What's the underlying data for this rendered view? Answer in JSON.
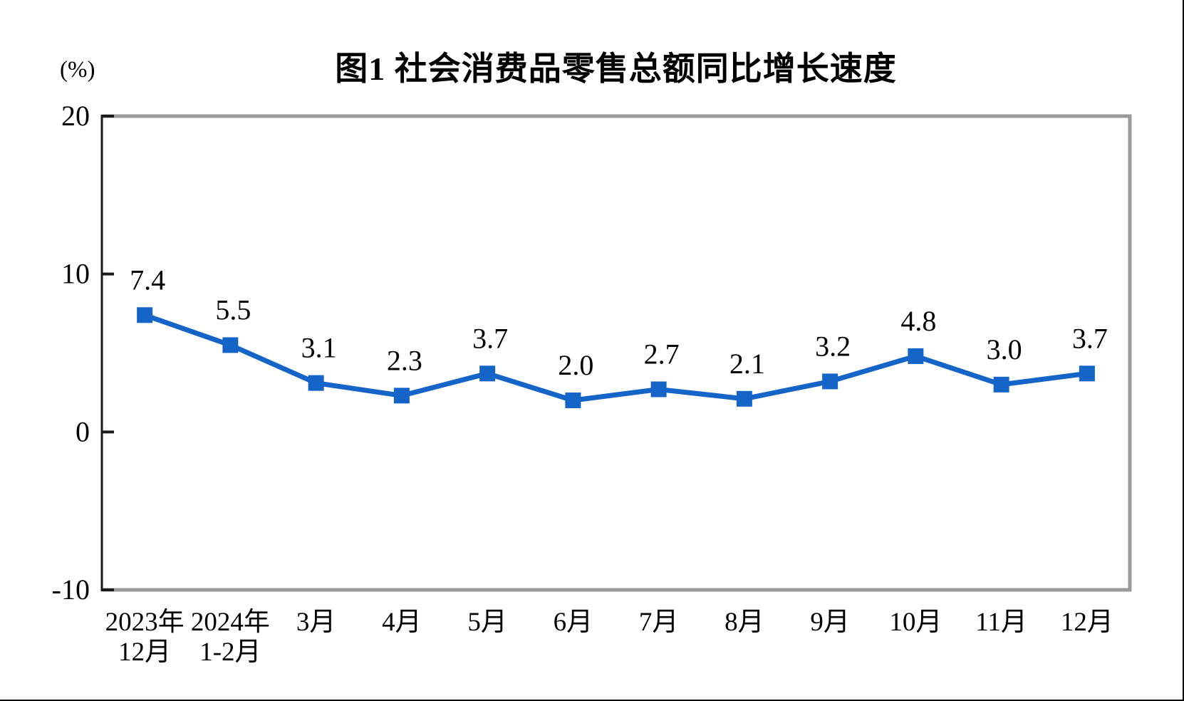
{
  "figure": {
    "title": "图1 社会消费品零售总额同比增长速度",
    "unit_label": "(%)"
  },
  "chart_data": {
    "type": "line",
    "title": "图1 社会消费品零售总额同比增长速度",
    "ylabel": "(%)",
    "xlabel": "",
    "categories": [
      [
        "2023年",
        "12月"
      ],
      [
        "2024年",
        "1-2月"
      ],
      [
        "3月"
      ],
      [
        "4月"
      ],
      [
        "5月"
      ],
      [
        "6月"
      ],
      [
        "7月"
      ],
      [
        "8月"
      ],
      [
        "9月"
      ],
      [
        "10月"
      ],
      [
        "11月"
      ],
      [
        "12月"
      ]
    ],
    "series": [
      {
        "name": "社会消费品零售总额同比增长速度",
        "values": [
          7.4,
          5.5,
          3.1,
          2.3,
          3.7,
          2.0,
          2.7,
          2.1,
          3.2,
          4.8,
          3.0,
          3.7
        ]
      }
    ],
    "data_labels": [
      "7.4",
      "5.5",
      "3.1",
      "2.3",
      "3.7",
      "2.0",
      "2.7",
      "2.1",
      "3.2",
      "4.8",
      "3.0",
      "3.7"
    ],
    "ylim": [
      -10,
      20
    ],
    "yticks": [
      20,
      10,
      0,
      -10
    ],
    "grid": "off",
    "legend": "none",
    "marker": "square",
    "colors": {
      "series": "#1565c8",
      "plot_border": "#9a9a9a",
      "axis": "#1a1a1a",
      "text": "#000000"
    }
  }
}
